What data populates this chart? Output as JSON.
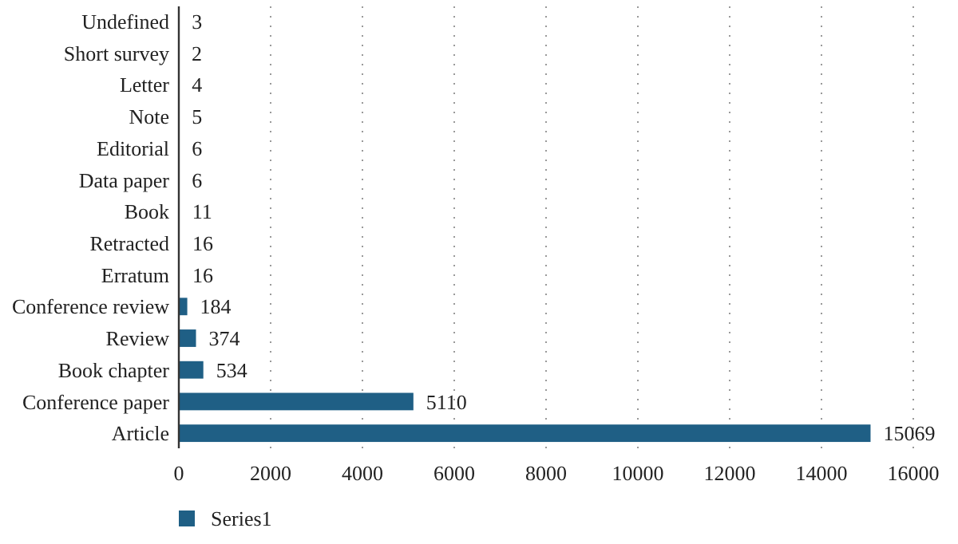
{
  "chart_data": {
    "type": "bar",
    "orientation": "horizontal",
    "categories": [
      "Undefined",
      "Short survey",
      "Letter",
      "Note",
      "Editorial",
      "Data paper",
      "Book",
      "Retracted",
      "Erratum",
      "Conference review",
      "Review",
      "Book chapter",
      "Conference paper",
      "Article"
    ],
    "series": [
      {
        "name": "Series1",
        "color": "#1f5f85",
        "values": [
          3,
          2,
          4,
          5,
          6,
          6,
          11,
          16,
          16,
          184,
          374,
          534,
          5110,
          15069
        ]
      }
    ],
    "xlim": [
      0,
      16000
    ],
    "xticks": [
      0,
      2000,
      4000,
      6000,
      8000,
      10000,
      12000,
      14000,
      16000
    ],
    "grid": "x",
    "legend": "bottom left",
    "data_labels": true
  }
}
